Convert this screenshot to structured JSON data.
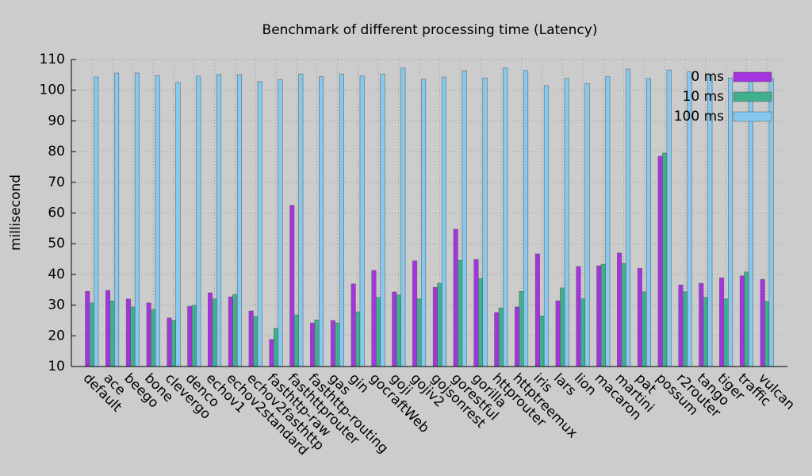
{
  "chart_data": {
    "type": "bar",
    "title": "Benchmark of different processing time (Latency)",
    "y_label": "millisecond",
    "categories": [
      "default",
      "ace",
      "beego",
      "bone",
      "clevergo",
      "denco",
      "echov1",
      "echov2standard",
      "echov2fasthttp",
      "fasthttp-raw",
      "fasthttprouter",
      "fasthttp-routing",
      "gas",
      "gin",
      "gocraftWeb",
      "goji",
      "gojiv2",
      "gojsonrest",
      "gorestful",
      "gorilla",
      "httprouter",
      "httptreemux",
      "iris",
      "lars",
      "lion",
      "macaron",
      "martini",
      "pat",
      "possum",
      "r2router",
      "tango",
      "tiger",
      "traffic",
      "vulcan"
    ],
    "series": [
      {
        "name": "0 ms",
        "color": "#a534e0",
        "values": [
          34.5,
          34.8,
          32,
          30.7,
          25.8,
          29.6,
          34,
          32.7,
          28.1,
          18.8,
          62.5,
          24.2,
          25,
          36.9,
          41.3,
          34.3,
          44.4,
          35.8,
          54.7,
          44.9,
          27.6,
          29.4,
          46.7,
          31.4,
          42.6,
          42.8,
          47,
          42,
          78.5,
          36.6,
          37.1,
          38.9,
          39.5,
          38.4
        ]
      },
      {
        "name": "10 ms",
        "color": "#3fb08e",
        "values": [
          30.7,
          31.4,
          29.4,
          28.6,
          25,
          29.9,
          32,
          33.5,
          26.3,
          22.4,
          26.8,
          25.2,
          24.2,
          27.8,
          32.5,
          33.3,
          32,
          37.1,
          44.6,
          38.7,
          29.1,
          34.5,
          26.5,
          35.6,
          32,
          43.3,
          43.6,
          34.3,
          79.5,
          34.3,
          32.5,
          32,
          40.8,
          31.2
        ]
      },
      {
        "name": "100 ms",
        "color": "#85c8f0",
        "values": [
          104.3,
          105.6,
          105.6,
          104.8,
          102.5,
          104.6,
          105.1,
          105.1,
          102.8,
          103.5,
          105.3,
          104.4,
          105.3,
          104.6,
          105.3,
          107.2,
          103.6,
          104.3,
          106.4,
          104,
          107.2,
          106.4,
          101.5,
          103.8,
          102.2,
          104.4,
          106.9,
          103.8,
          106.6,
          106,
          104.8,
          104,
          104.3,
          103.8
        ]
      }
    ],
    "ylim": [
      10,
      110
    ],
    "yticks": [
      10,
      20,
      30,
      40,
      50,
      60,
      70,
      80,
      90,
      100,
      110
    ],
    "grid": true,
    "legend": "top-right"
  }
}
